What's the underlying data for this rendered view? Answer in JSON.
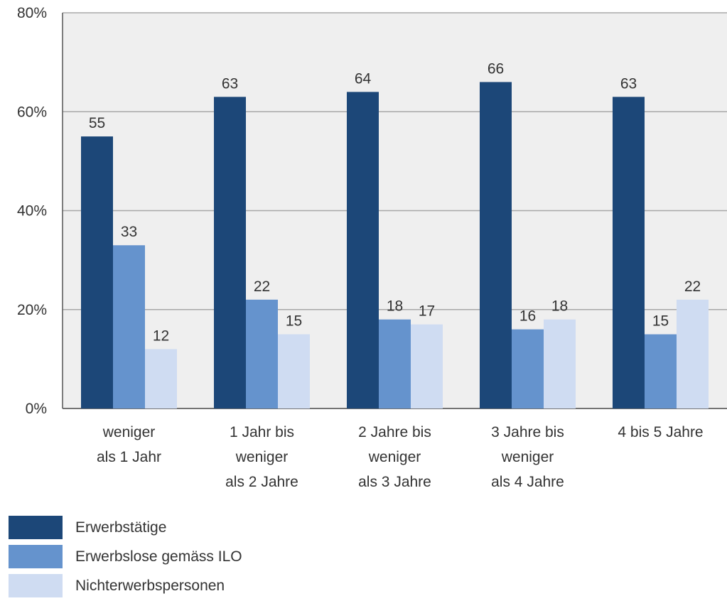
{
  "chart_data": {
    "type": "bar",
    "title": "",
    "xlabel": "",
    "ylabel": "",
    "ylim": [
      0,
      80
    ],
    "yticks": [
      "0%",
      "20%",
      "40%",
      "60%",
      "80%"
    ],
    "grid": true,
    "legend_position": "bottom-left",
    "categories": [
      [
        "weniger",
        "als 1 Jahr"
      ],
      [
        "1 Jahr bis",
        "weniger",
        "als 2 Jahre"
      ],
      [
        "2 Jahre bis",
        "weniger",
        "als 3 Jahre"
      ],
      [
        "3 Jahre bis",
        "weniger",
        "als 4 Jahre"
      ],
      [
        "4 bis 5 Jahre"
      ]
    ],
    "series": [
      {
        "name": "Erwerbstätige",
        "color": "#1c4778",
        "values": [
          55,
          63,
          64,
          66,
          63
        ]
      },
      {
        "name": "Erwerbslose gemäss ILO",
        "color": "#6593cd",
        "values": [
          33,
          22,
          18,
          16,
          15
        ]
      },
      {
        "name": "Nichterwerbspersonen",
        "color": "#cfdcf2",
        "values": [
          12,
          15,
          17,
          18,
          22
        ]
      }
    ],
    "plot_background": "#efefef",
    "grid_color": "#a8a8a8"
  }
}
